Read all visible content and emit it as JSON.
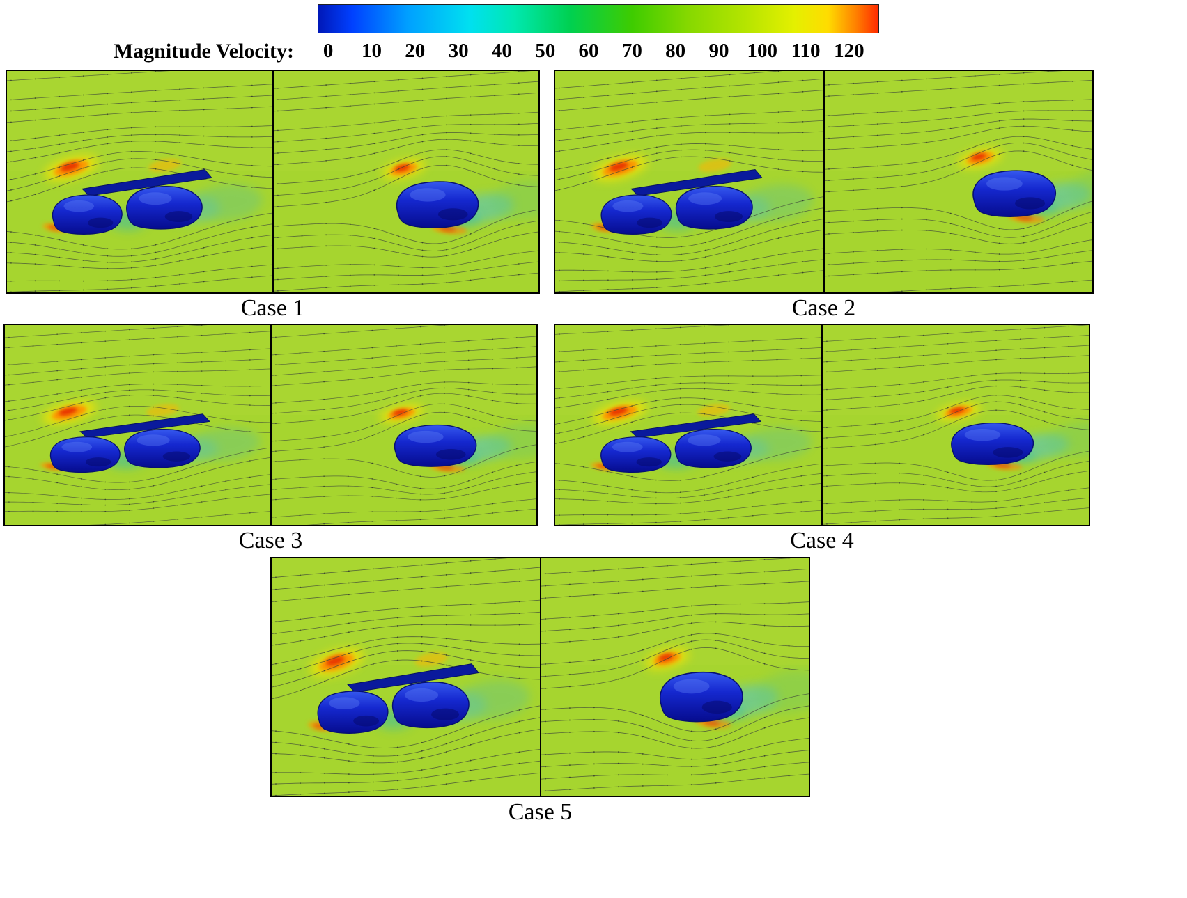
{
  "figure": {
    "colorbar": {
      "label": "Magnitude Velocity:",
      "ticks": [
        "0",
        "10",
        "20",
        "30",
        "40",
        "50",
        "60",
        "70",
        "80",
        "90",
        "100",
        "110",
        "120"
      ],
      "gradient_colors": [
        "#0018b8",
        "#0040ff",
        "#00a0ff",
        "#00e0f0",
        "#00e8b0",
        "#00d050",
        "#3ecc00",
        "#86d800",
        "#b4e400",
        "#e4f000",
        "#ffdc00",
        "#ff8000",
        "#ff2a00"
      ],
      "gradient_stops": [
        0,
        6,
        16,
        27,
        35,
        45,
        56,
        66,
        76,
        85,
        91,
        96,
        100
      ]
    },
    "cases": [
      {
        "label": "Case 1"
      },
      {
        "label": "Case 2"
      },
      {
        "label": "Case 3"
      },
      {
        "label": "Case 4"
      },
      {
        "label": "Case 5"
      }
    ],
    "panels": [
      {
        "case": "Case 1",
        "side": "left",
        "type": "tandem",
        "content": "two tandem vehicle bodies with canopy plate, velocity contours and streamlines"
      },
      {
        "case": "Case 1",
        "side": "right",
        "type": "single",
        "content": "single vehicle body, velocity contours and streamlines"
      },
      {
        "case": "Case 2",
        "side": "left",
        "type": "tandem",
        "content": "two tandem vehicle bodies with canopy plate, velocity contours and streamlines"
      },
      {
        "case": "Case 2",
        "side": "right",
        "type": "single",
        "content": "single vehicle body, velocity contours and streamlines"
      },
      {
        "case": "Case 3",
        "side": "left",
        "type": "tandem",
        "content": "two tandem vehicle bodies with canopy plate, velocity contours and streamlines"
      },
      {
        "case": "Case 3",
        "side": "right",
        "type": "single",
        "content": "single vehicle body, velocity contours and streamlines"
      },
      {
        "case": "Case 4",
        "side": "left",
        "type": "tandem",
        "content": "two tandem vehicle bodies with canopy plate, velocity contours and streamlines"
      },
      {
        "case": "Case 4",
        "side": "right",
        "type": "single",
        "content": "single vehicle body, velocity contours and streamlines"
      },
      {
        "case": "Case 5",
        "side": "left",
        "type": "tandem",
        "content": "two tandem vehicle bodies with canopy plate, velocity contours and streamlines"
      },
      {
        "case": "Case 5",
        "side": "right",
        "type": "single",
        "content": "single vehicle body, velocity contours and streamlines"
      }
    ]
  },
  "chart_data": {
    "type": "heatmap",
    "title": "",
    "colorbar_label": "Magnitude Velocity:",
    "colorbar_ticks": [
      0,
      10,
      20,
      30,
      40,
      50,
      60,
      70,
      80,
      90,
      100,
      110,
      120
    ],
    "colorbar_range": [
      0,
      125
    ],
    "cases": [
      "Case 1",
      "Case 2",
      "Case 3",
      "Case 4",
      "Case 5"
    ],
    "panels_per_case": 2,
    "legend_position": "top",
    "description": "CFD velocity-magnitude contour fields with surface streamlines around vehicle bodies; for each case the left sub-panel shows a tandem two-body configuration with a connecting plate, the right sub-panel shows a single body. Background flow ~70-80, stagnation/acceleration zones reach ~120 (red/orange), wake and body regions near 0-30 (blue/cyan)."
  }
}
